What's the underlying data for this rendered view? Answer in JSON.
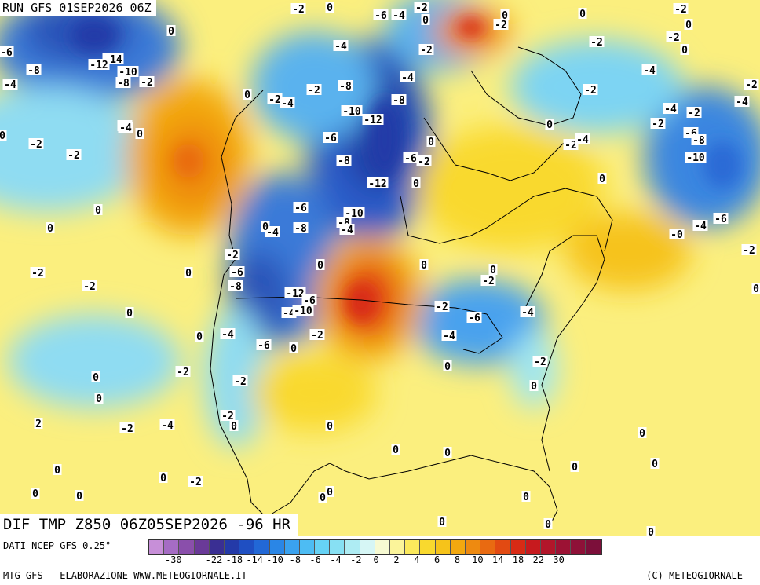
{
  "header": {
    "run": "RUN GFS 01SEP2026 06Z",
    "field": "DIF TMP Z850 06Z05SEP2026 -96 HR"
  },
  "footer": {
    "data_credit": "DATI NCEP GFS 0.25°",
    "model_credit": "MTG-GFS - ELABORAZIONE WWW.METEOGIORNALE.IT",
    "copyright": "(C) METEOGIORNALE"
  },
  "legend": {
    "colors": [
      "#c78fd8",
      "#a56cc4",
      "#8a4fab",
      "#6a3a98",
      "#3a2f93",
      "#243aa8",
      "#1f4fc2",
      "#2268d6",
      "#2a86e6",
      "#3aa2ef",
      "#4dbcf3",
      "#66d2f5",
      "#87e0f3",
      "#aeecf3",
      "#d6f6f5",
      "#f7fad2",
      "#fbf49a",
      "#fbe95c",
      "#f9d92e",
      "#f6c31a",
      "#f3a80f",
      "#ee8a10",
      "#e96a11",
      "#e24a12",
      "#d82b15",
      "#c71a1e",
      "#b2162a",
      "#9c1234",
      "#8e1138",
      "#7c0f3a"
    ],
    "ticks": [
      "-30",
      "-22",
      "-18",
      "-14",
      "-10",
      "-8",
      "-6",
      "-4",
      "-2",
      "0",
      "2",
      "4",
      "6",
      "8",
      "10",
      "14",
      "18",
      "22",
      "30"
    ],
    "tick_swatch_index": [
      1,
      3,
      4,
      5,
      6,
      7,
      8,
      9,
      10,
      11,
      12,
      13,
      14,
      15,
      16,
      17,
      18,
      19,
      20
    ]
  },
  "map_labels": [
    [
      "0",
      420,
      9
    ],
    [
      "-2",
      380,
      11
    ],
    [
      "-6",
      485,
      19
    ],
    [
      "-4",
      508,
      19
    ],
    [
      "-2",
      537,
      9
    ],
    [
      "0",
      542,
      25
    ],
    [
      "0",
      643,
      19
    ],
    [
      "-2",
      638,
      31
    ],
    [
      "0",
      742,
      17
    ],
    [
      "-2",
      867,
      11
    ],
    [
      "0",
      877,
      31
    ],
    [
      "-2",
      858,
      47
    ],
    [
      "0",
      872,
      63
    ],
    [
      "-6",
      8,
      66
    ],
    [
      "-8",
      43,
      89
    ],
    [
      "-14",
      144,
      75
    ],
    [
      "-12",
      126,
      82
    ],
    [
      "-10",
      163,
      91
    ],
    [
      "-8",
      157,
      105
    ],
    [
      "-2",
      187,
      104
    ],
    [
      "0",
      218,
      39
    ],
    [
      "-4",
      13,
      107
    ],
    [
      "-4",
      434,
      58
    ],
    [
      "-2",
      543,
      63
    ],
    [
      "-4",
      519,
      98
    ],
    [
      "-2",
      760,
      53
    ],
    [
      "-4",
      827,
      89
    ],
    [
      "-4",
      945,
      129
    ],
    [
      "-2",
      957,
      107
    ],
    [
      "-2",
      752,
      114
    ],
    [
      "-2",
      400,
      114
    ],
    [
      "-8",
      440,
      109
    ],
    [
      "-2",
      350,
      126
    ],
    [
      "-4",
      366,
      131
    ],
    [
      "0",
      315,
      120
    ],
    [
      "-8",
      508,
      127
    ],
    [
      "-10",
      448,
      141
    ],
    [
      "-12",
      475,
      152
    ],
    [
      "-6",
      159,
      160
    ],
    [
      "-4",
      160,
      162
    ],
    [
      "0",
      178,
      170
    ],
    [
      "-4",
      854,
      138
    ],
    [
      "-2",
      884,
      143
    ],
    [
      "-2",
      838,
      157
    ],
    [
      "0",
      700,
      158
    ],
    [
      "-6",
      880,
      169
    ],
    [
      "-8",
      890,
      178
    ],
    [
      "-2",
      46,
      183
    ],
    [
      "-2",
      94,
      197
    ],
    [
      "0",
      3,
      172
    ],
    [
      "-6",
      421,
      175
    ],
    [
      "-8",
      438,
      204
    ],
    [
      "-6",
      523,
      201
    ],
    [
      "-2",
      540,
      205
    ],
    [
      "-10",
      886,
      200
    ],
    [
      "-2",
      727,
      184
    ],
    [
      "-4",
      742,
      177
    ],
    [
      "0",
      549,
      180
    ],
    [
      "-12",
      481,
      233
    ],
    [
      "0",
      530,
      233
    ],
    [
      "0",
      767,
      227
    ],
    [
      "-6",
      383,
      264
    ],
    [
      "-10",
      451,
      271
    ],
    [
      "-8",
      438,
      283
    ],
    [
      "-4",
      442,
      292
    ],
    [
      "-8",
      383,
      290
    ],
    [
      "-4",
      347,
      295
    ],
    [
      "0",
      338,
      288
    ],
    [
      "0",
      125,
      267
    ],
    [
      "0",
      64,
      290
    ],
    [
      "-6",
      918,
      278
    ],
    [
      "-4",
      892,
      287
    ],
    [
      "-0",
      862,
      298
    ],
    [
      "-2",
      954,
      318
    ],
    [
      "0",
      963,
      367
    ],
    [
      "-2",
      296,
      324
    ],
    [
      "-6",
      302,
      346
    ],
    [
      "-8",
      300,
      364
    ],
    [
      "0",
      408,
      337
    ],
    [
      "0",
      540,
      337
    ],
    [
      "0",
      628,
      343
    ],
    [
      "-2",
      622,
      357
    ],
    [
      "-2",
      48,
      347
    ],
    [
      "0",
      240,
      347
    ],
    [
      "-2",
      114,
      364
    ],
    [
      "-12",
      376,
      373
    ],
    [
      "-6",
      394,
      382
    ],
    [
      "-4",
      368,
      398
    ],
    [
      "-10",
      386,
      395
    ],
    [
      "-2",
      563,
      390
    ],
    [
      "-6",
      604,
      404
    ],
    [
      "-4",
      672,
      397
    ],
    [
      "0",
      165,
      398
    ],
    [
      "0",
      254,
      428
    ],
    [
      "-4",
      290,
      425
    ],
    [
      "-6",
      336,
      439
    ],
    [
      "0",
      374,
      443
    ],
    [
      "-2",
      404,
      426
    ],
    [
      "-4",
      572,
      427
    ],
    [
      "-2",
      688,
      460
    ],
    [
      "0",
      570,
      466
    ],
    [
      "0",
      680,
      491
    ],
    [
      "-2",
      233,
      473
    ],
    [
      "0",
      122,
      480
    ],
    [
      "0",
      126,
      507
    ],
    [
      "-2",
      306,
      485
    ],
    [
      "-2",
      290,
      529
    ],
    [
      "0",
      298,
      542
    ],
    [
      "2",
      49,
      539
    ],
    [
      "-2",
      162,
      545
    ],
    [
      "-4",
      213,
      541
    ],
    [
      "0",
      420,
      542
    ],
    [
      "0",
      818,
      551
    ],
    [
      "0",
      504,
      572
    ],
    [
      "0",
      570,
      576
    ],
    [
      "0",
      732,
      594
    ],
    [
      "0",
      834,
      590
    ],
    [
      "0",
      73,
      598
    ],
    [
      "0",
      208,
      608
    ],
    [
      "-2",
      249,
      613
    ],
    [
      "0",
      45,
      628
    ],
    [
      "0",
      101,
      631
    ],
    [
      "0",
      420,
      626
    ],
    [
      "0",
      411,
      633
    ],
    [
      "0",
      670,
      632
    ],
    [
      "0",
      563,
      664
    ],
    [
      "0",
      698,
      667
    ],
    [
      "0",
      829,
      677
    ]
  ]
}
